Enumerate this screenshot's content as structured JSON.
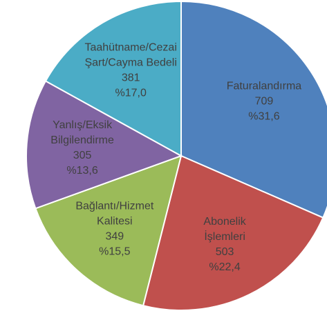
{
  "chart_data": {
    "type": "pie",
    "categories": [
      [
        "Faturalandırma"
      ],
      [
        "Abonelik",
        "İşlemleri"
      ],
      [
        "Bağlantı/Hizmet",
        "Kalitesi"
      ],
      [
        "Yanlış/Eksik",
        "Bilgilendirme"
      ],
      [
        "Taahütname/Cezai",
        "Şart/Cayma Bedeli"
      ]
    ],
    "values": [
      709,
      503,
      349,
      305,
      381
    ],
    "percent_labels": [
      "%31,6",
      "%22,4",
      "%15,5",
      "%13,6",
      "%17,0"
    ],
    "colors": [
      "#4f81bd",
      "#c0504d",
      "#9bbb59",
      "#8064a2",
      "#4bacc6"
    ]
  }
}
